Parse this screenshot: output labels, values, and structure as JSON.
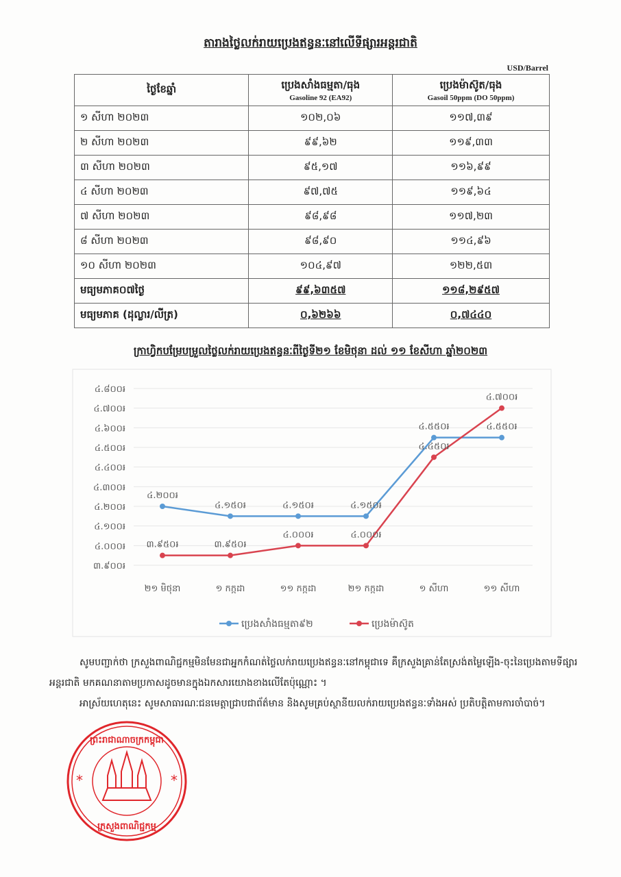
{
  "title": "តារាងថ្លៃលក់រាយប្រេងឥន្ធនៈនៅលើទីផ្សារអន្តរជាតិ",
  "unit": "USD/Barrel",
  "table": {
    "headers": [
      {
        "km": "ថ្ងៃខែឆ្នាំ",
        "en": ""
      },
      {
        "km": "ប្រេងសាំងធម្មតា/ធុង",
        "en": "Gasoline 92 (EA92)"
      },
      {
        "km": "ប្រេងម៉ាស៊ូត/ធុង",
        "en": "Gasoil 50ppm (DO 50ppm)"
      }
    ],
    "rows": [
      [
        "១ សីហា ២០២៣",
        "១០២,០៦",
        "១១៧,៣៩"
      ],
      [
        "២ សីហា ២០២៣",
        "៩៩,៦២",
        "១១៩,៣៣"
      ],
      [
        "៣ សីហា ២០២៣",
        "៩៥,១៧",
        "១១៦,៩៩"
      ],
      [
        "៤ សីហា ២០២៣",
        "៩៧,៧៥",
        "១១៩,៦៤"
      ],
      [
        "៧ សីហា ២០២៣",
        "៩៨,៩៨",
        "១១៧,២៣"
      ],
      [
        "៨ សីហា ២០២៣",
        "៩៨,៩០",
        "១១៤,៩៦"
      ],
      [
        "១០ សីហា ២០២៣",
        "១០៤,៩៧",
        "១២២,៥៣"
      ]
    ],
    "averages": [
      [
        "មធ្យមភាគ០៧ថ្ងៃ",
        "៩៩,៦៣៥៧",
        "១១៨,២៩៥៧"
      ],
      [
        "មធ្យមភាគ (ដុល្លារ/លីត្រ)",
        "០,៦២៦៦",
        "០,៧៤៤០"
      ]
    ]
  },
  "chart_data": {
    "type": "line",
    "title": "ក្រាហ្វិកបម្រែបម្រួលថ្លៃលក់រាយប្រេងឥន្ធនៈពីថ្ងៃទី២១ ខែមិថុនា ដល់ ១១ ខែសីហា ឆ្នាំ២០២៣",
    "categories": [
      "២១ មិថុនា",
      "១ កក្កដា",
      "១១ កក្កដា",
      "២១ កក្កដា",
      "១ សីហា",
      "១១ សីហា"
    ],
    "ylim": [
      3900,
      4800
    ],
    "yticks": [
      3900,
      4000,
      4100,
      4200,
      4300,
      4400,
      4500,
      4600,
      4700,
      4800
    ],
    "ytick_labels": [
      "៣.៩០០៛",
      "៤.០០០៛",
      "៤.១០០៛",
      "៤.២០០៛",
      "៤.៣០០៛",
      "៤.៤០០៛",
      "៤.៥០០៛",
      "៤.៦០០៛",
      "៤.៧០០៛",
      "៤.៨០០៛"
    ],
    "grid": true,
    "legend": "bottom",
    "series": [
      {
        "name": "ប្រេងសាំងធម្មតា៩២",
        "color": "#5b9bd5",
        "values": [
          4200,
          4150,
          4150,
          4150,
          4550,
          4550
        ],
        "labels": [
          "៤.២០០៛",
          "៤.១៥០៛",
          "៤.១៥០៛",
          "៤.១៥០៛",
          "៤.៥៥០៛",
          "៤.៥៥០៛"
        ]
      },
      {
        "name": "ប្រេងម៉ាស៊ូត",
        "color": "#d9434f",
        "values": [
          3950,
          3950,
          4000,
          4000,
          4450,
          4700
        ],
        "labels": [
          "៣.៩៥០៛",
          "៣.៩៥០៛",
          "៤.០០០៛",
          "៤.០០០៛",
          "៤.៤៥០៛",
          "៤.៧០០៛"
        ]
      }
    ]
  },
  "paragraphs": [
    "សូមបញ្ជាក់ថា ក្រសួងពាណិជ្ជកម្មមិនមែនជាអ្នកកំណត់ថ្លៃលក់រាយប្រេងឥន្ធនៈនៅកម្ពុជាទេ គឺក្រសួងគ្រាន់តែស្រង់តម្លៃឡើង-ចុះនៃប្រេងតាមទីផ្សារអន្តរជាតិ មកគណនាតាមប្រកាសដូចមានក្នុងឯកសារយោងខាងលើតែប៉ុណ្ណោះ ។",
    "អាស្រ័យហេតុនេះ សូមសាធារណៈជនមេត្តាជ្រាបជាព័ត៌មាន និងសូមគ្រប់ស្ថានីយលក់រាយប្រេងឥន្ធនៈទាំងអស់ ប្រតិបត្តិតាមការចាំបាច់។"
  ],
  "stamp": {
    "top": "ព្រះរាជាណាចក្រកម្ពុជា",
    "bottom": "ក្រសួងពាណិជ្ជកម្ម",
    "color": "#e0262b"
  }
}
